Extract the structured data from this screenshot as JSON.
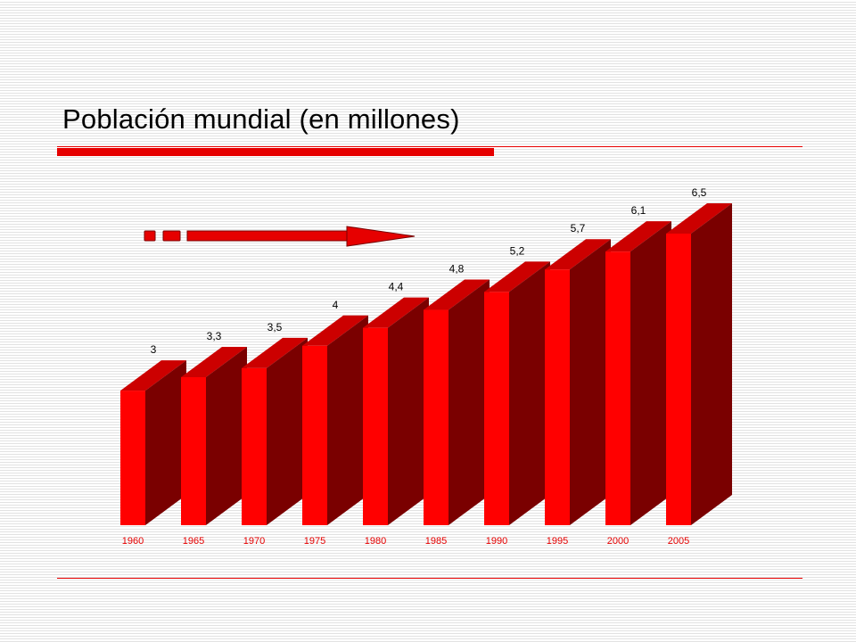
{
  "slide": {
    "title": "Población mundial (en millones)"
  },
  "colors": {
    "accent": "#e60000",
    "bar_front": "#ff0000",
    "bar_side": "#7a0000",
    "bar_top": "#cc0000",
    "tick_label": "#e60000"
  },
  "icons": {
    "arrow": "right-arrow-icon"
  },
  "chart_data": {
    "type": "bar",
    "categories": [
      "1960",
      "1965",
      "1970",
      "1975",
      "1980",
      "1985",
      "1990",
      "1995",
      "2000",
      "2005"
    ],
    "values": [
      3,
      3.3,
      3.5,
      4,
      4.4,
      4.8,
      5.2,
      5.7,
      6.1,
      6.5
    ],
    "value_labels": [
      "3",
      "3,3",
      "3,5",
      "4",
      "4,4",
      "4,8",
      "5,2",
      "5,7",
      "6,1",
      "6,5"
    ],
    "title": "",
    "xlabel": "",
    "ylabel": "",
    "ylim": [
      0,
      6.5
    ],
    "three_d": true,
    "grid": false,
    "legend": "none"
  }
}
